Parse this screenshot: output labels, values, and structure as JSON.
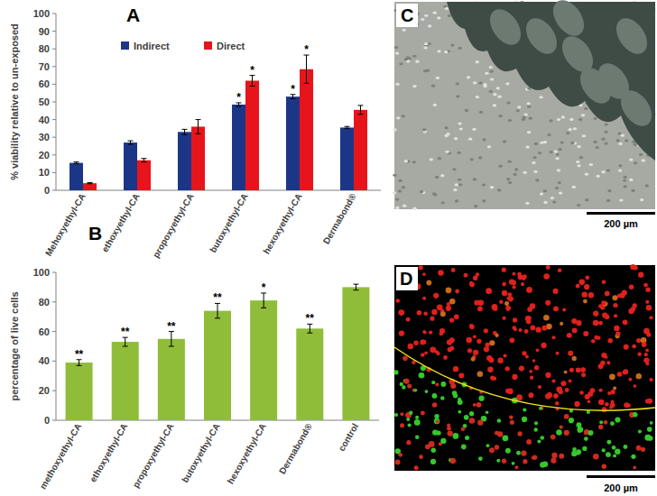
{
  "chart_data": [
    {
      "type": "bar",
      "title": "A",
      "y_label": "% viability relative to un-exposed",
      "categories": [
        "Mehoxyethyl-CA",
        "ethoxyethyl-CA",
        "propoxyethyl-CA",
        "butoxyethyl-CA",
        "hexoxyethyl-CA",
        "Dermabond®"
      ],
      "series": [
        {
          "name": "Indirect",
          "color": "#1c3687",
          "values": [
            15.5,
            27,
            33,
            48.5,
            53,
            35.5
          ],
          "errors": [
            0.5,
            1,
            1.5,
            1,
            1.2,
            0.6
          ],
          "significance": [
            null,
            null,
            null,
            "*",
            "*",
            null
          ]
        },
        {
          "name": "Direct",
          "color": "#e8141c",
          "values": [
            4,
            17,
            36,
            62,
            68.5,
            45.5
          ],
          "errors": [
            0.3,
            1,
            4,
            3,
            8,
            2.5
          ],
          "significance": [
            null,
            null,
            null,
            "*",
            "*",
            null
          ]
        }
      ],
      "ylim": [
        0,
        100
      ],
      "yticks": [
        0,
        10,
        20,
        30,
        40,
        50,
        60,
        70,
        80,
        90,
        100
      ],
      "grid": false,
      "legend": "top-left"
    },
    {
      "type": "bar",
      "title": "B",
      "y_label": "percentage of live cells",
      "categories": [
        "methoxyethyl-CA",
        "ethoxyethyl-CA",
        "propoxyethyl-CA",
        "butoxyethyl-CA",
        "hexoxyethyl-CA",
        "Dermabond®",
        "control"
      ],
      "series": [
        {
          "name": "percentage of live cells",
          "color": "#8fbd3a",
          "values": [
            39,
            53,
            55,
            74,
            81,
            62,
            90
          ],
          "errors": [
            2,
            3,
            5,
            5,
            5,
            3,
            2
          ],
          "significance": [
            "**",
            "**",
            "**",
            "**",
            "*",
            "**",
            null
          ]
        }
      ],
      "ylim": [
        0,
        100
      ],
      "yticks": [
        0,
        20,
        40,
        60,
        80,
        100
      ],
      "grid": false
    }
  ],
  "images": [
    {
      "label": "C",
      "scale_bar": "200 µm"
    },
    {
      "label": "D",
      "scale_bar": "200 µm"
    }
  ]
}
